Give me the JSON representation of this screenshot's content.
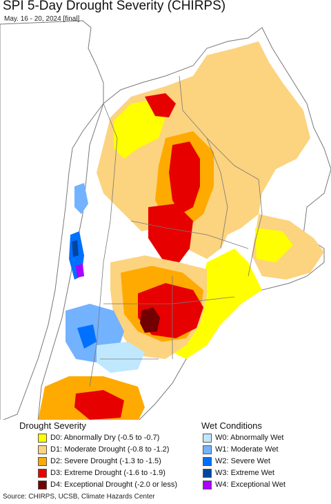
{
  "title": "SPI 5-Day Drought Severity (CHIRPS)",
  "subtitle": "May. 16 - 20, 2024 [final]",
  "legend": {
    "drought_heading": "Drought Severity",
    "wet_heading": "Wet Conditions",
    "drought": [
      {
        "label": "D0: Abnormally Dry (-0.5 to -0.7)",
        "color": "#ffff00"
      },
      {
        "label": "D1: Moderate Drought (-0.8 to -1.2)",
        "color": "#fcd37f"
      },
      {
        "label": "D2: Severe Drought (-1.3 to -1.5)",
        "color": "#ffaa00"
      },
      {
        "label": "D3: Extreme Drought (-1.6 to -1.9)",
        "color": "#e60000"
      },
      {
        "label": "D4: Exceptional Drought (-2.0 or less)",
        "color": "#730000"
      }
    ],
    "wet": [
      {
        "label": "W0: Abnormally Wet",
        "color": "#bfe8ff"
      },
      {
        "label": "W1: Moderate Wet",
        "color": "#73b2ff"
      },
      {
        "label": "W2: Severe Wet",
        "color": "#0070ff"
      },
      {
        "label": "W3: Extreme Wet",
        "color": "#0045a0"
      },
      {
        "label": "W4: Exceptional Wet",
        "color": "#aa00ff"
      }
    ]
  },
  "map_colors": {
    "land": "#ffffff",
    "ocean": "#ffffff",
    "border": "#777777"
  },
  "source": "Source: CHIRPS, UCSB, Climate Hazards Center"
}
